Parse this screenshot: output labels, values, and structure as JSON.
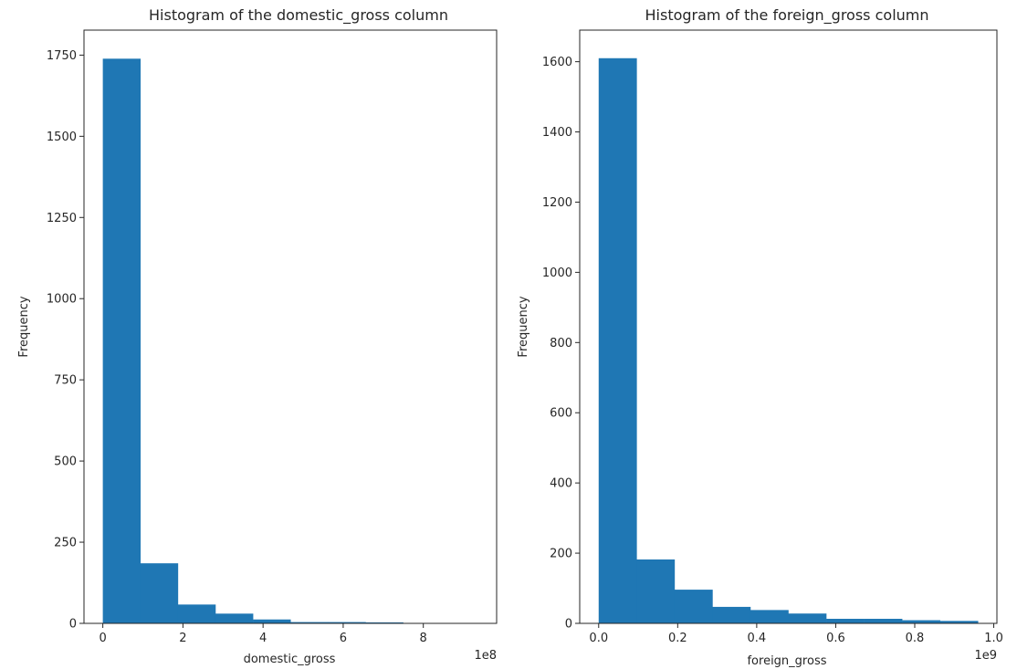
{
  "chart_data": [
    {
      "type": "bar",
      "title": "Histogram of the domestic_gross column",
      "xlabel": "domestic_gross",
      "ylabel": "Frequency",
      "x_offset_label": "1e8",
      "xlim": [
        -0.47,
        9.83
      ],
      "ylim": [
        0,
        1827
      ],
      "xticks": [
        0,
        2,
        4,
        6,
        8
      ],
      "xtick_labels": [
        "0",
        "2",
        "4",
        "6",
        "8"
      ],
      "yticks": [
        0,
        250,
        500,
        750,
        1000,
        1250,
        1500,
        1750
      ],
      "ytick_labels": [
        "0",
        "250",
        "500",
        "750",
        "1000",
        "1250",
        "1500",
        "1750"
      ],
      "bin_edges": [
        0,
        0.937,
        1.874,
        2.811,
        3.748,
        4.685,
        5.622,
        6.559,
        7.496,
        8.433,
        9.37
      ],
      "values": [
        1739,
        185,
        58,
        30,
        12,
        4,
        4,
        3,
        1,
        1
      ],
      "color": "#1f77b4",
      "grid": false
    },
    {
      "type": "bar",
      "title": "Histogram of the foreign_gross column",
      "xlabel": "foreign_gross",
      "ylabel": "Frequency",
      "x_offset_label": "1e9",
      "xlim": [
        -0.048,
        1.008
      ],
      "ylim": [
        0,
        1690
      ],
      "xticks": [
        0,
        0.2,
        0.4,
        0.6,
        0.8,
        1.0
      ],
      "xtick_labels": [
        "0.0",
        "0.2",
        "0.4",
        "0.6",
        "0.8",
        "1.0"
      ],
      "yticks": [
        0,
        200,
        400,
        600,
        800,
        1000,
        1200,
        1400,
        1600
      ],
      "ytick_labels": [
        "0",
        "200",
        "400",
        "600",
        "800",
        "1000",
        "1200",
        "1400",
        "1600"
      ],
      "bin_edges": [
        0,
        0.096,
        0.192,
        0.288,
        0.384,
        0.48,
        0.576,
        0.672,
        0.768,
        0.864,
        0.96
      ],
      "values": [
        1610,
        182,
        96,
        47,
        38,
        28,
        13,
        13,
        9,
        7
      ],
      "color": "#1f77b4",
      "grid": false
    }
  ]
}
